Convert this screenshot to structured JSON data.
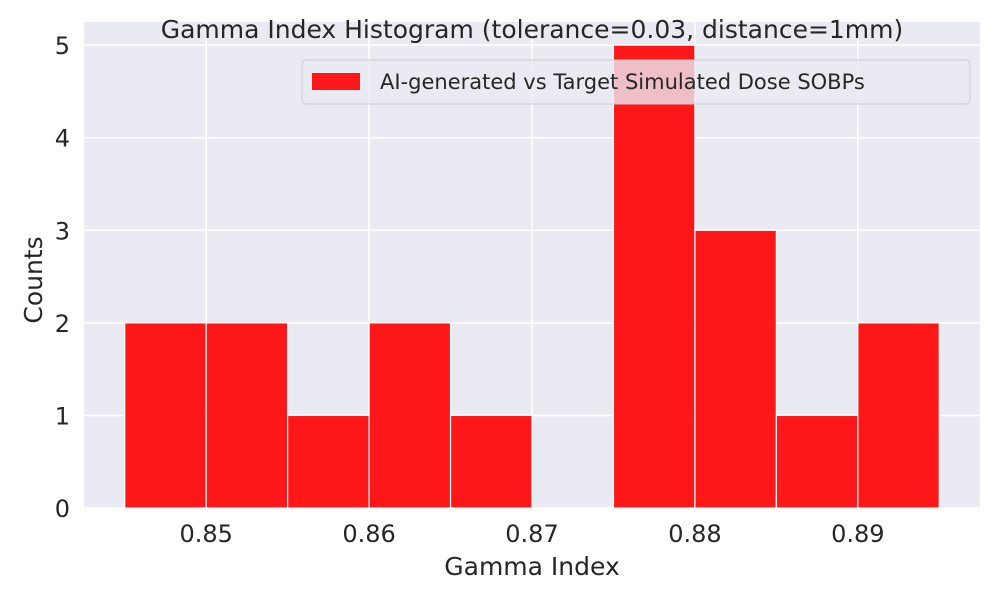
{
  "chart_data": {
    "type": "bar",
    "title": "Gamma Index Histogram (tolerance=0.03, distance=1mm)",
    "xlabel": "Gamma Index",
    "ylabel": "Counts",
    "bins": [
      {
        "start": 0.845,
        "end": 0.85,
        "count": 2
      },
      {
        "start": 0.85,
        "end": 0.855,
        "count": 2
      },
      {
        "start": 0.855,
        "end": 0.86,
        "count": 1
      },
      {
        "start": 0.86,
        "end": 0.865,
        "count": 2
      },
      {
        "start": 0.865,
        "end": 0.87,
        "count": 1
      },
      {
        "start": 0.87,
        "end": 0.875,
        "count": 0
      },
      {
        "start": 0.875,
        "end": 0.88,
        "count": 5
      },
      {
        "start": 0.88,
        "end": 0.885,
        "count": 3
      },
      {
        "start": 0.885,
        "end": 0.89,
        "count": 1
      },
      {
        "start": 0.89,
        "end": 0.895,
        "count": 2
      }
    ],
    "xlim": [
      0.8425,
      0.8975
    ],
    "ylim": [
      0,
      5.25
    ],
    "xticks": [
      0.85,
      0.86,
      0.87,
      0.88,
      0.89
    ],
    "xtick_labels": [
      "0.85",
      "0.86",
      "0.87",
      "0.88",
      "0.89"
    ],
    "yticks": [
      0,
      1,
      2,
      3,
      4,
      5
    ],
    "ytick_labels": [
      "0",
      "1",
      "2",
      "3",
      "4",
      "5"
    ],
    "series": [
      {
        "name": "AI-generated vs Target Simulated Dose SOBPs",
        "color": "#ff0000",
        "alpha": 0.9
      }
    ],
    "grid": true,
    "background_color": "#eaeaf2",
    "legend_position": "upper right"
  }
}
